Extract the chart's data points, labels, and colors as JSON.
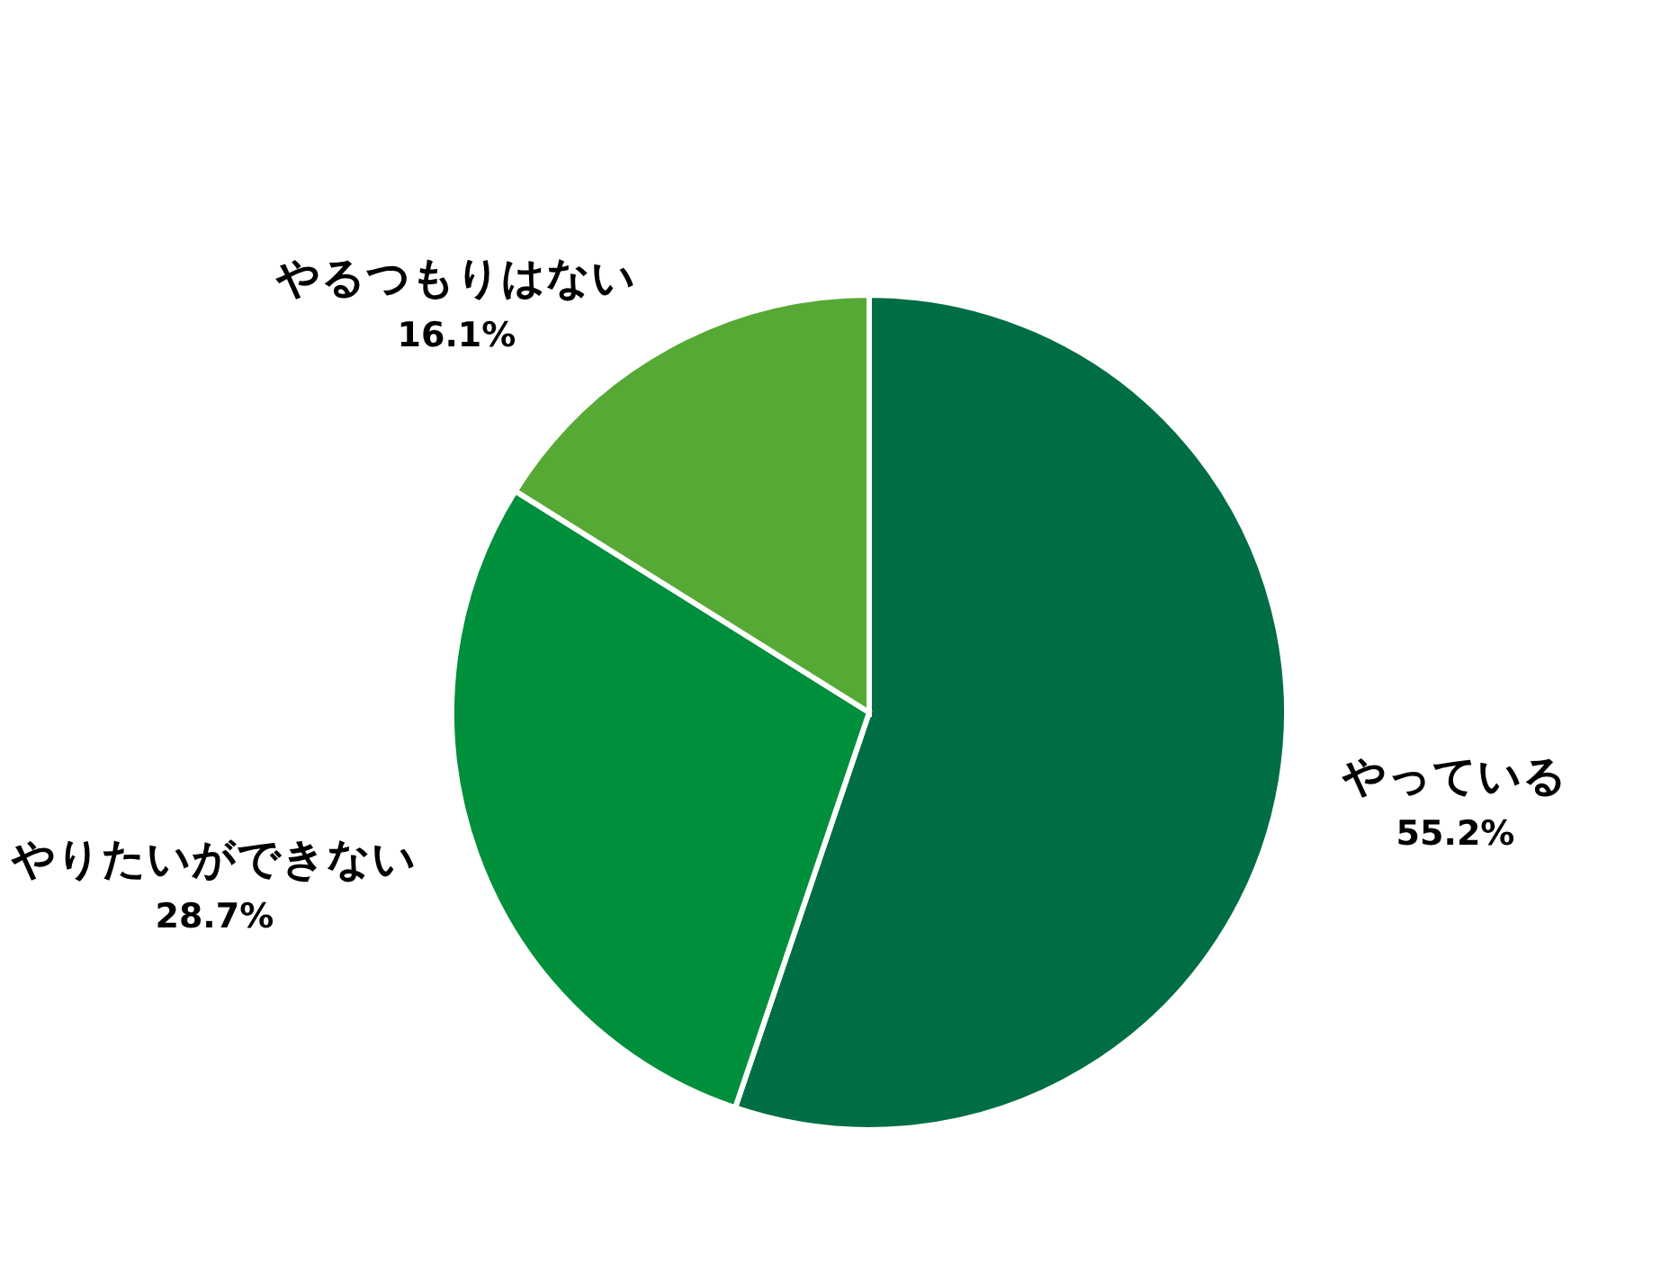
{
  "chart_data": {
    "type": "pie",
    "categories": [
      "やっている",
      "やりたいができない",
      "やるつもりはない"
    ],
    "values": [
      55.2,
      28.7,
      16.1
    ],
    "colors": [
      "#006e44",
      "#008f3b",
      "#56a935"
    ],
    "value_labels": [
      "55.2%",
      "28.7%",
      "16.1%"
    ]
  }
}
